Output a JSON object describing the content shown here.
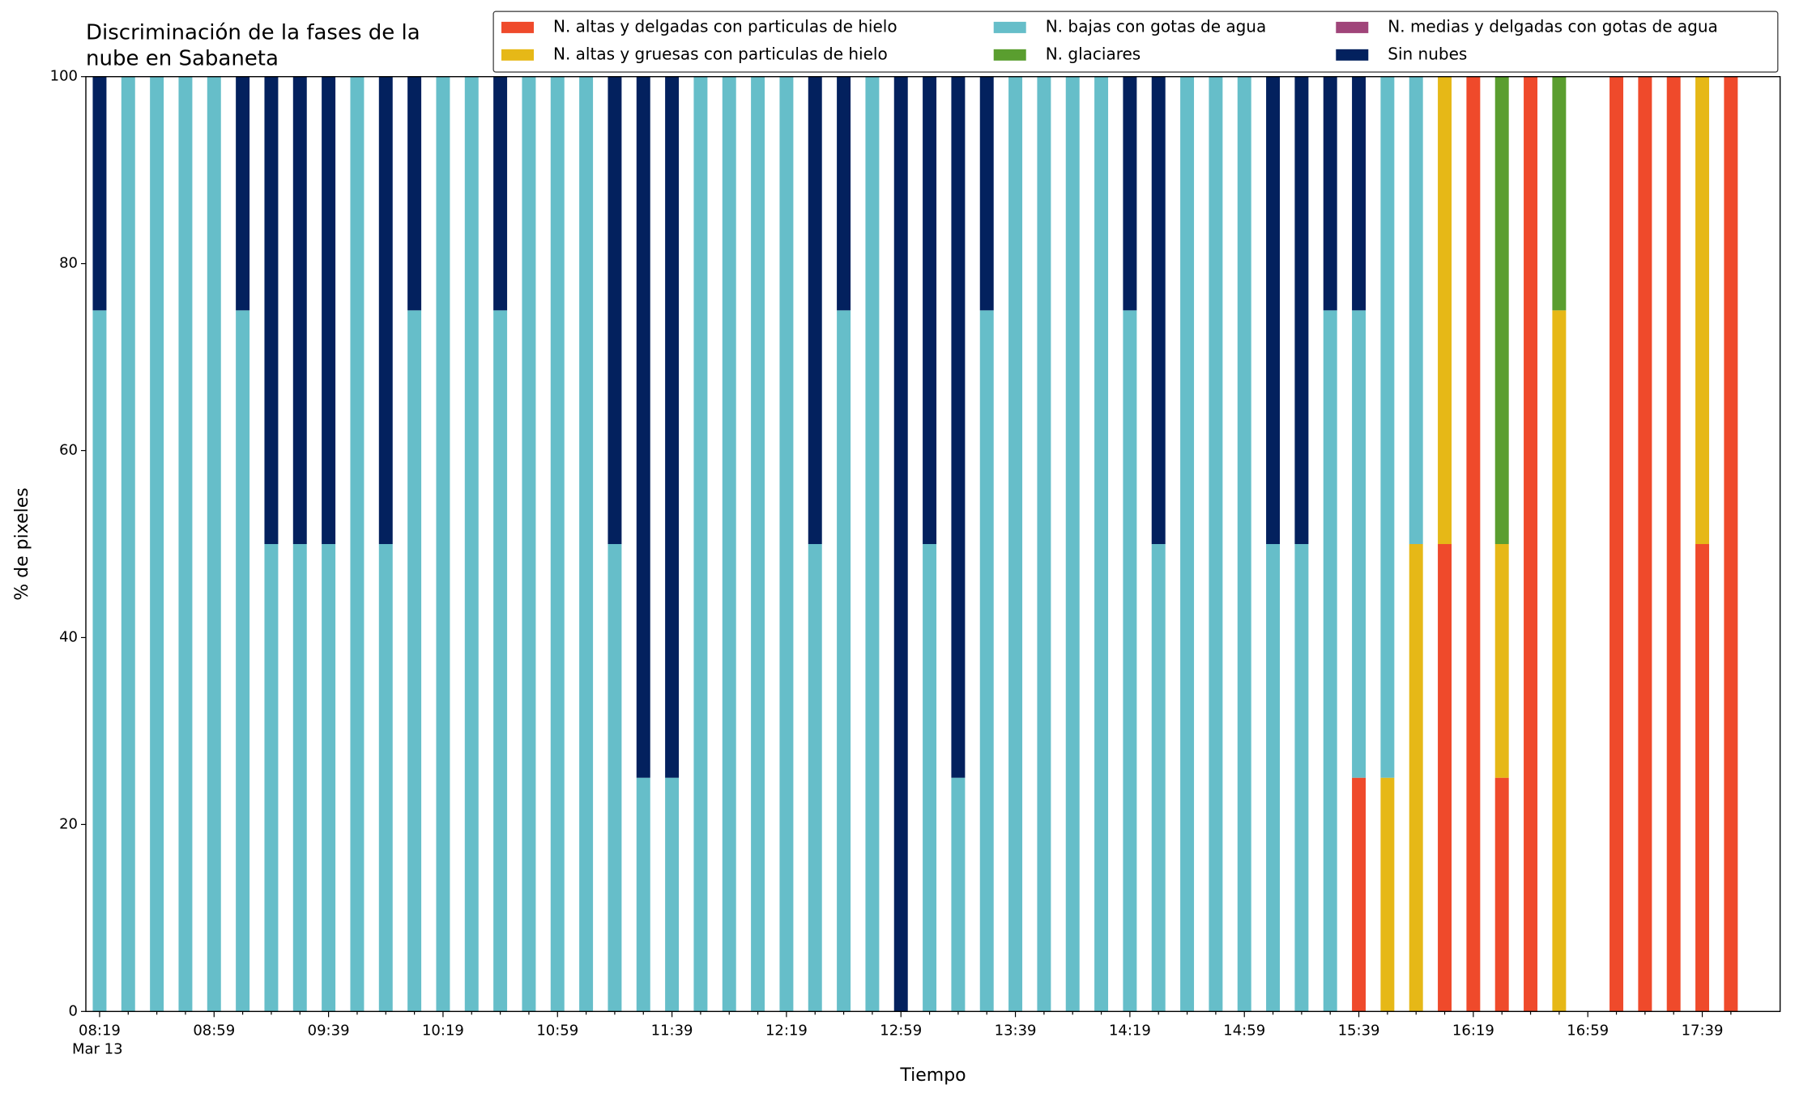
{
  "chart_data": {
    "type": "stacked_bar",
    "title": [
      "Discriminación de la fases de la",
      "nube en Sabaneta"
    ],
    "x_label": "Tiempo",
    "y_label": "% de pixeles",
    "date_label": "Mar 13",
    "categories": [
      "08:19",
      null,
      null,
      null,
      "08:59",
      null,
      null,
      null,
      "09:39",
      null,
      null,
      null,
      "10:19",
      null,
      null,
      null,
      "10:59",
      null,
      null,
      null,
      "11:39",
      null,
      null,
      null,
      "12:19",
      null,
      null,
      null,
      "12:59",
      null,
      null,
      null,
      "13:39",
      null,
      null,
      null,
      "14:19",
      null,
      null,
      null,
      "14:59",
      null,
      null,
      null,
      "15:39",
      null,
      null,
      null,
      "16:19",
      null,
      null,
      null,
      "16:59",
      null,
      null,
      null,
      "17:39",
      null
    ],
    "ylim": [
      0,
      100
    ],
    "yticks": [
      0,
      20,
      40,
      60,
      80,
      100
    ],
    "legend": "upper right",
    "series": [
      {
        "name": "N. altas y delgadas con particulas de hielo",
        "color": "#ef4a2b",
        "values": [
          0,
          0,
          0,
          0,
          0,
          0,
          0,
          0,
          0,
          0,
          0,
          0,
          0,
          0,
          0,
          0,
          0,
          0,
          0,
          0,
          0,
          0,
          0,
          0,
          0,
          0,
          0,
          0,
          0,
          0,
          0,
          0,
          0,
          0,
          0,
          0,
          0,
          0,
          0,
          0,
          0,
          0,
          0,
          0,
          25,
          0,
          0,
          50,
          100,
          25,
          100,
          0,
          0,
          100,
          100,
          100,
          50,
          100
        ]
      },
      {
        "name": "N. altas y gruesas con particulas de hielo",
        "color": "#e6b817",
        "values": [
          0,
          0,
          0,
          0,
          0,
          0,
          0,
          0,
          0,
          0,
          0,
          0,
          0,
          0,
          0,
          0,
          0,
          0,
          0,
          0,
          0,
          0,
          0,
          0,
          0,
          0,
          0,
          0,
          0,
          0,
          0,
          0,
          0,
          0,
          0,
          0,
          0,
          0,
          0,
          0,
          0,
          0,
          0,
          0,
          0,
          25,
          50,
          50,
          0,
          25,
          0,
          75,
          0,
          0,
          0,
          0,
          50,
          0
        ]
      },
      {
        "name": "N. bajas con gotas de agua",
        "color": "#66bec9",
        "values": [
          75,
          100,
          100,
          100,
          100,
          75,
          50,
          50,
          50,
          100,
          50,
          75,
          100,
          100,
          75,
          100,
          100,
          100,
          50,
          25,
          25,
          100,
          100,
          100,
          100,
          50,
          75,
          100,
          0,
          50,
          25,
          75,
          100,
          100,
          100,
          100,
          75,
          50,
          100,
          100,
          100,
          50,
          50,
          75,
          50,
          75,
          50,
          0,
          0,
          0,
          0,
          0,
          0,
          0,
          0,
          0,
          0,
          0
        ]
      },
      {
        "name": "N. glaciares",
        "color": "#5a9e2f",
        "values": [
          0,
          0,
          0,
          0,
          0,
          0,
          0,
          0,
          0,
          0,
          0,
          0,
          0,
          0,
          0,
          0,
          0,
          0,
          0,
          0,
          0,
          0,
          0,
          0,
          0,
          0,
          0,
          0,
          0,
          0,
          0,
          0,
          0,
          0,
          0,
          0,
          0,
          0,
          0,
          0,
          0,
          0,
          0,
          0,
          0,
          0,
          0,
          0,
          0,
          50,
          0,
          25,
          0,
          0,
          0,
          0,
          0,
          0
        ]
      },
      {
        "name": "N. medias y delgadas con gotas de agua",
        "color": "#a0457a",
        "values": [
          0,
          0,
          0,
          0,
          0,
          0,
          0,
          0,
          0,
          0,
          0,
          0,
          0,
          0,
          0,
          0,
          0,
          0,
          0,
          0,
          0,
          0,
          0,
          0,
          0,
          0,
          0,
          0,
          0,
          0,
          0,
          0,
          0,
          0,
          0,
          0,
          0,
          0,
          0,
          0,
          0,
          0,
          0,
          0,
          0,
          0,
          0,
          0,
          0,
          0,
          0,
          0,
          0,
          0,
          0,
          0,
          0,
          0
        ]
      },
      {
        "name": "Sin nubes",
        "color": "#03215e",
        "values": [
          25,
          0,
          0,
          0,
          0,
          25,
          50,
          50,
          50,
          0,
          50,
          25,
          0,
          0,
          25,
          0,
          0,
          0,
          50,
          75,
          75,
          0,
          0,
          0,
          0,
          50,
          25,
          0,
          100,
          50,
          75,
          25,
          0,
          0,
          0,
          0,
          25,
          50,
          0,
          0,
          0,
          50,
          50,
          25,
          25,
          0,
          0,
          0,
          0,
          0,
          0,
          0,
          0,
          0,
          0,
          0,
          0,
          0
        ]
      }
    ]
  }
}
